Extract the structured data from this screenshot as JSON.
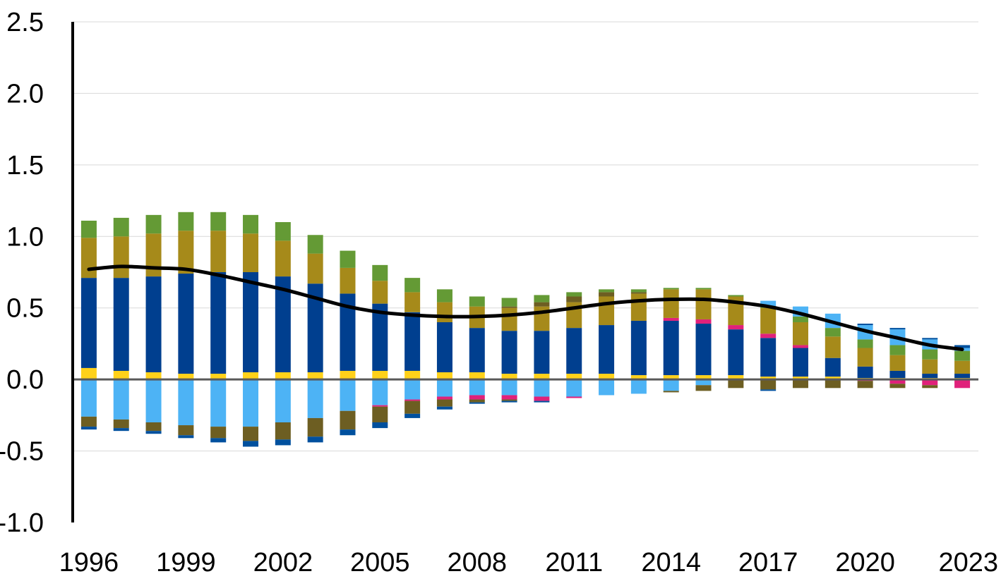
{
  "chart_data": {
    "type": "bar",
    "stacked": true,
    "title": "",
    "xlabel": "",
    "ylabel": "",
    "ylim": [
      -1.0,
      2.5
    ],
    "yticks": [
      "2.5",
      "2.0",
      "1.5",
      "1.0",
      "0.5",
      "0.0",
      "-0.5",
      "-1.0"
    ],
    "ytick_values": [
      2.5,
      2.0,
      1.5,
      1.0,
      0.5,
      0.0,
      -0.5,
      -1.0
    ],
    "xticks": [
      "1996",
      "1999",
      "2002",
      "2005",
      "2008",
      "2011",
      "2014",
      "2017",
      "2020",
      "2023"
    ],
    "x": [
      1996,
      1997,
      1998,
      1999,
      2000,
      2001,
      2002,
      2003,
      2004,
      2005,
      2006,
      2007,
      2008,
      2009,
      2010,
      2011,
      2012,
      2013,
      2014,
      2015,
      2016,
      2017,
      2018,
      2019,
      2020,
      2021,
      2022,
      2023
    ],
    "grid": true,
    "legend": "none",
    "series": [
      {
        "color": "#ffd11a",
        "values": [
          0.08,
          0.06,
          0.05,
          0.04,
          0.04,
          0.05,
          0.05,
          0.05,
          0.06,
          0.06,
          0.06,
          0.05,
          0.05,
          0.04,
          0.04,
          0.04,
          0.04,
          0.03,
          0.03,
          0.03,
          0.03,
          0.02,
          0.02,
          0.02,
          0.01,
          0.01,
          0.01,
          0.01
        ]
      },
      {
        "color": "#003f8f",
        "values": [
          0.63,
          0.65,
          0.67,
          0.7,
          0.71,
          0.7,
          0.67,
          0.62,
          0.54,
          0.47,
          0.41,
          0.35,
          0.31,
          0.3,
          0.3,
          0.32,
          0.34,
          0.38,
          0.38,
          0.36,
          0.32,
          0.27,
          0.2,
          0.13,
          0.08,
          0.05,
          0.03,
          0.03
        ]
      },
      {
        "color": "#e0217a",
        "values": [
          0,
          0,
          0,
          0,
          0,
          0,
          0,
          0,
          0,
          0,
          0,
          0,
          0,
          0,
          0,
          0,
          0,
          0,
          0.02,
          0.03,
          0.03,
          0.03,
          0.02,
          0,
          0,
          0,
          0,
          0
        ]
      },
      {
        "color": "#a68a1a",
        "values": [
          0.28,
          0.29,
          0.3,
          0.3,
          0.29,
          0.27,
          0.25,
          0.21,
          0.18,
          0.16,
          0.14,
          0.14,
          0.15,
          0.16,
          0.17,
          0.18,
          0.2,
          0.19,
          0.2,
          0.21,
          0.2,
          0.18,
          0.16,
          0.15,
          0.13,
          0.11,
          0.1,
          0.09
        ]
      },
      {
        "color": "#6d5e22",
        "values": [
          0,
          0,
          0,
          0,
          0,
          0,
          0,
          0,
          0,
          0,
          0,
          0,
          0,
          0.01,
          0.03,
          0.04,
          0.03,
          0.01,
          0,
          0,
          0,
          0,
          0,
          0,
          0,
          0,
          0,
          0
        ]
      },
      {
        "color": "#649a35",
        "values": [
          0.12,
          0.13,
          0.13,
          0.13,
          0.13,
          0.13,
          0.13,
          0.13,
          0.12,
          0.11,
          0.1,
          0.09,
          0.07,
          0.06,
          0.05,
          0.03,
          0.02,
          0.02,
          0.01,
          0.01,
          0.01,
          0.01,
          0.04,
          0.06,
          0.06,
          0.07,
          0.07,
          0.07
        ]
      },
      {
        "color": "#4db3f5",
        "values": [
          0,
          0,
          0,
          0,
          0,
          0,
          0,
          0,
          0,
          0,
          0,
          0,
          0,
          0,
          0,
          0,
          0,
          0,
          0,
          0,
          0,
          0.04,
          0.07,
          0.1,
          0.1,
          0.11,
          0.07,
          0.02
        ]
      },
      {
        "color": "#00509e",
        "values": [
          0,
          0,
          0,
          0,
          0,
          0,
          0,
          0,
          0,
          0,
          0,
          0,
          0,
          0,
          0,
          0,
          0,
          0,
          0,
          0,
          0,
          0,
          0,
          0,
          0.01,
          0.01,
          0.01,
          0.02
        ]
      },
      {
        "color": "#4db3f5",
        "values": [
          -0.26,
          -0.28,
          -0.3,
          -0.32,
          -0.33,
          -0.33,
          -0.3,
          -0.27,
          -0.22,
          -0.18,
          -0.14,
          -0.12,
          -0.11,
          -0.11,
          -0.12,
          -0.12,
          -0.11,
          -0.1,
          -0.08,
          -0.04,
          0,
          0,
          0,
          0,
          0,
          0,
          0,
          0
        ]
      },
      {
        "color": "#e0217a",
        "values": [
          0,
          0,
          0,
          0,
          0,
          0,
          0,
          0,
          0,
          -0.01,
          -0.01,
          -0.02,
          -0.03,
          -0.03,
          -0.03,
          -0.01,
          0,
          0,
          0,
          0,
          0,
          0,
          0,
          0,
          -0.01,
          -0.03,
          -0.04,
          -0.06
        ]
      },
      {
        "color": "#6d5e22",
        "values": [
          -0.07,
          -0.06,
          -0.06,
          -0.07,
          -0.08,
          -0.1,
          -0.12,
          -0.13,
          -0.13,
          -0.11,
          -0.09,
          -0.05,
          -0.02,
          -0.01,
          0,
          0,
          0,
          0,
          -0.01,
          -0.04,
          -0.06,
          -0.07,
          -0.06,
          -0.06,
          -0.05,
          -0.03,
          -0.02,
          0
        ]
      },
      {
        "color": "#00509e",
        "values": [
          -0.02,
          -0.02,
          -0.02,
          -0.02,
          -0.03,
          -0.04,
          -0.04,
          -0.04,
          -0.04,
          -0.04,
          -0.03,
          -0.02,
          -0.01,
          -0.01,
          -0.01,
          0,
          0,
          0,
          0,
          0,
          0,
          -0.01,
          0,
          0,
          0,
          0,
          0,
          0
        ]
      }
    ],
    "line": {
      "color": "#000000",
      "values": [
        0.77,
        0.79,
        0.78,
        0.77,
        0.73,
        0.68,
        0.63,
        0.57,
        0.51,
        0.47,
        0.45,
        0.44,
        0.44,
        0.45,
        0.47,
        0.5,
        0.53,
        0.55,
        0.56,
        0.56,
        0.54,
        0.51,
        0.46,
        0.4,
        0.34,
        0.29,
        0.24,
        0.21
      ]
    }
  }
}
